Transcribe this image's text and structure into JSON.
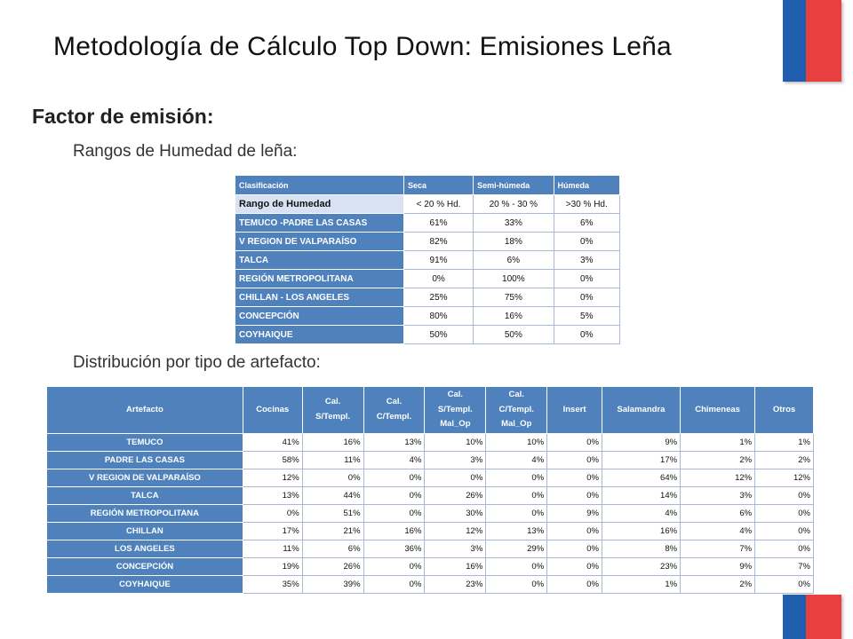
{
  "title": "Metodología de Cálculo Top Down: Emisiones Leña",
  "heading": "Factor de emisión:",
  "subheading_1": "Rangos de Humedad de leña:",
  "subheading_2": "Distribución por tipo de artefacto:",
  "humidity_table": {
    "headers": [
      "Clasificación",
      "Seca",
      "Semi-húmeda",
      "Húmeda"
    ],
    "rows": [
      [
        "Rango de Humedad",
        "< 20 % Hd.",
        "20 % - 30 %",
        ">30 % Hd."
      ],
      [
        "TEMUCO -PADRE LAS CASAS",
        "61%",
        "33%",
        "6%"
      ],
      [
        "V REGION DE VALPARAÍSO",
        "82%",
        "18%",
        "0%"
      ],
      [
        "TALCA",
        "91%",
        "6%",
        "3%"
      ],
      [
        "REGIÓN METROPOLITANA",
        "0%",
        "100%",
        "0%"
      ],
      [
        "CHILLAN - LOS ANGELES",
        "25%",
        "75%",
        "0%"
      ],
      [
        "CONCEPCIÓN",
        "80%",
        "16%",
        "5%"
      ],
      [
        "COYHAIQUE",
        "50%",
        "50%",
        "0%"
      ]
    ]
  },
  "artifact_table": {
    "headers": [
      "Artefacto",
      "Cocinas",
      "Cal.\nS/Templ.",
      "Cal.\nC/Templ.",
      "Cal.\nS/Templ.\nMal_Op",
      "Cal.\nC/Templ.\nMal_Op",
      "Insert",
      "Salamandra",
      "Chimeneas",
      "Otros"
    ],
    "rows": [
      [
        "TEMUCO",
        "41%",
        "16%",
        "13%",
        "10%",
        "10%",
        "0%",
        "9%",
        "1%",
        "1%"
      ],
      [
        "PADRE LAS CASAS",
        "58%",
        "11%",
        "4%",
        "3%",
        "4%",
        "0%",
        "17%",
        "2%",
        "2%"
      ],
      [
        "V REGION DE VALPARAÍSO",
        "12%",
        "0%",
        "0%",
        "0%",
        "0%",
        "0%",
        "64%",
        "12%",
        "12%"
      ],
      [
        "TALCA",
        "13%",
        "44%",
        "0%",
        "26%",
        "0%",
        "0%",
        "14%",
        "3%",
        "0%"
      ],
      [
        "REGIÓN METROPOLITANA",
        "0%",
        "51%",
        "0%",
        "30%",
        "0%",
        "9%",
        "4%",
        "6%",
        "0%"
      ],
      [
        "CHILLAN",
        "17%",
        "21%",
        "16%",
        "12%",
        "13%",
        "0%",
        "16%",
        "4%",
        "0%"
      ],
      [
        "LOS ANGELES",
        "11%",
        "6%",
        "36%",
        "3%",
        "29%",
        "0%",
        "8%",
        "7%",
        "0%"
      ],
      [
        "CONCEPCIÓN",
        "19%",
        "26%",
        "0%",
        "16%",
        "0%",
        "0%",
        "23%",
        "9%",
        "7%"
      ],
      [
        "COYHAIQUE",
        "35%",
        "39%",
        "0%",
        "23%",
        "0%",
        "0%",
        "1%",
        "2%",
        "0%"
      ]
    ]
  },
  "colors": {
    "table_header": "#4f81bd",
    "flag_blue": "#1f5fae",
    "flag_red": "#e8403f"
  }
}
